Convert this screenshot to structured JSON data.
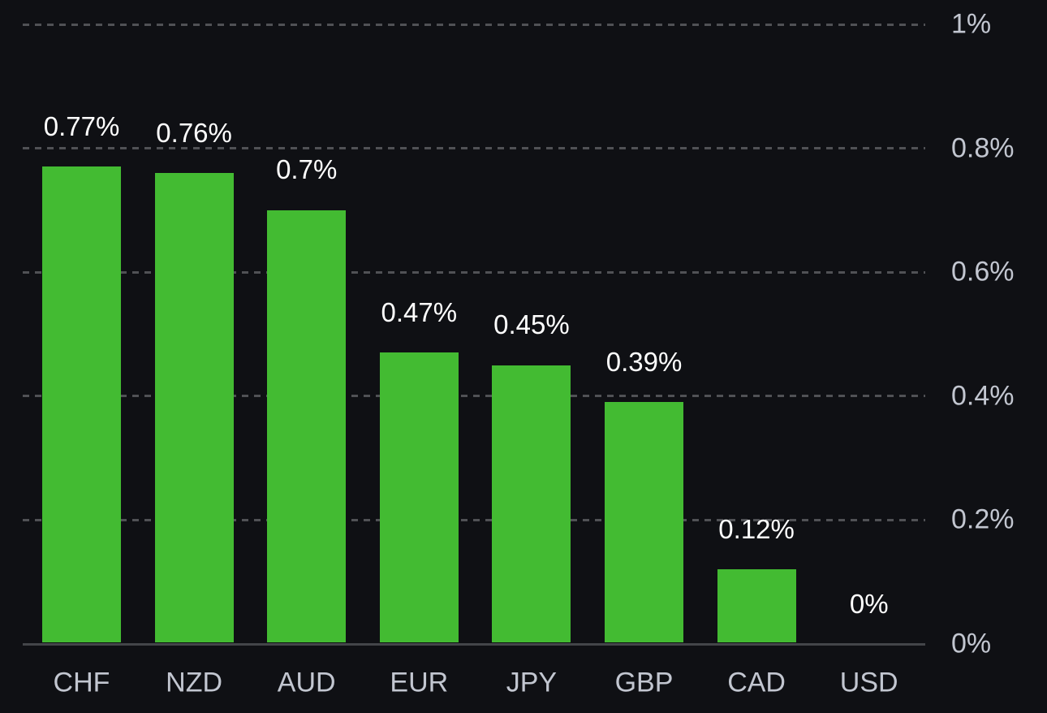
{
  "chart_data": {
    "type": "bar",
    "categories": [
      "CHF",
      "NZD",
      "AUD",
      "EUR",
      "JPY",
      "GBP",
      "CAD",
      "USD"
    ],
    "values": [
      0.77,
      0.76,
      0.7,
      0.47,
      0.45,
      0.39,
      0.12,
      0
    ],
    "value_labels": [
      "0.77%",
      "0.76%",
      "0.7%",
      "0.47%",
      "0.45%",
      "0.39%",
      "0.12%",
      "0%"
    ],
    "y_ticks": [
      {
        "value": 1.0,
        "label": "1%"
      },
      {
        "value": 0.8,
        "label": "0.8%"
      },
      {
        "value": 0.6,
        "label": "0.6%"
      },
      {
        "value": 0.4,
        "label": "0.4%"
      },
      {
        "value": 0.2,
        "label": "0.2%"
      },
      {
        "value": 0.0,
        "label": "0%"
      }
    ],
    "ylim": [
      0,
      1
    ],
    "axis_side": "right",
    "grid": "horizontal-dashed",
    "legend": "none"
  },
  "colors": {
    "background": "#0f1014",
    "bar": "#43bb32",
    "value_label": "#ffffff",
    "axis_label": "#c2c6d0",
    "gridline": "#505155",
    "baseline": "#434549"
  }
}
